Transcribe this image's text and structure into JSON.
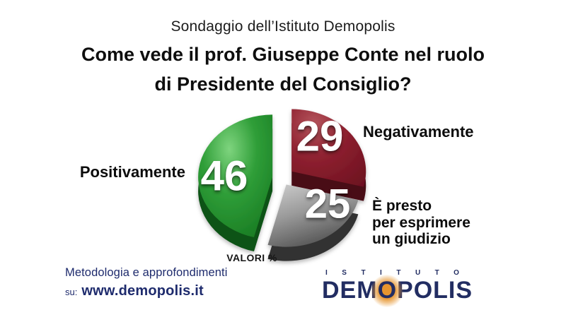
{
  "header": {
    "survey_line": "Sondaggio dell’Istituto Demopolis",
    "question": "Come vede il prof. Giuseppe Conte nel ruolo\ndi Presidente del Consiglio?"
  },
  "chart_data": {
    "type": "pie",
    "style": "3d-exploded",
    "title": "Come vede il prof. Giuseppe Conte nel ruolo di Presidente del Consiglio?",
    "labels": [
      "Positivamente",
      "Negativamente",
      "È presto\nper esprimere\nun giudizio"
    ],
    "values": [
      46,
      29,
      25
    ],
    "unit_note": "VALORI %",
    "order_clockwise_from_top": [
      1,
      2,
      0
    ],
    "slice_colors": [
      {
        "name": "green",
        "light": "#7ed47e",
        "base": "#2f9e38",
        "dark": "#187a22",
        "side": "#0c5213"
      },
      {
        "name": "dark-red",
        "light": "#b5555d",
        "base": "#8f2130",
        "dark": "#6d1120",
        "side": "#4a0b15"
      },
      {
        "name": "gray",
        "light": "#cfcfcf",
        "base": "#9a9a9a",
        "dark": "#575757",
        "side": "#333333"
      }
    ]
  },
  "footer": {
    "methodology": "Metodologia e approfondimenti",
    "url_prefix": "su:",
    "url": "www.demopolis.it",
    "text_color": "#1e2b6d"
  },
  "logo": {
    "istituto": "ISTITUTO",
    "name_pre": "DEM",
    "name_o": "O",
    "name_post": "POLIS",
    "navy": "#222d62",
    "orange": "#e6952f"
  }
}
